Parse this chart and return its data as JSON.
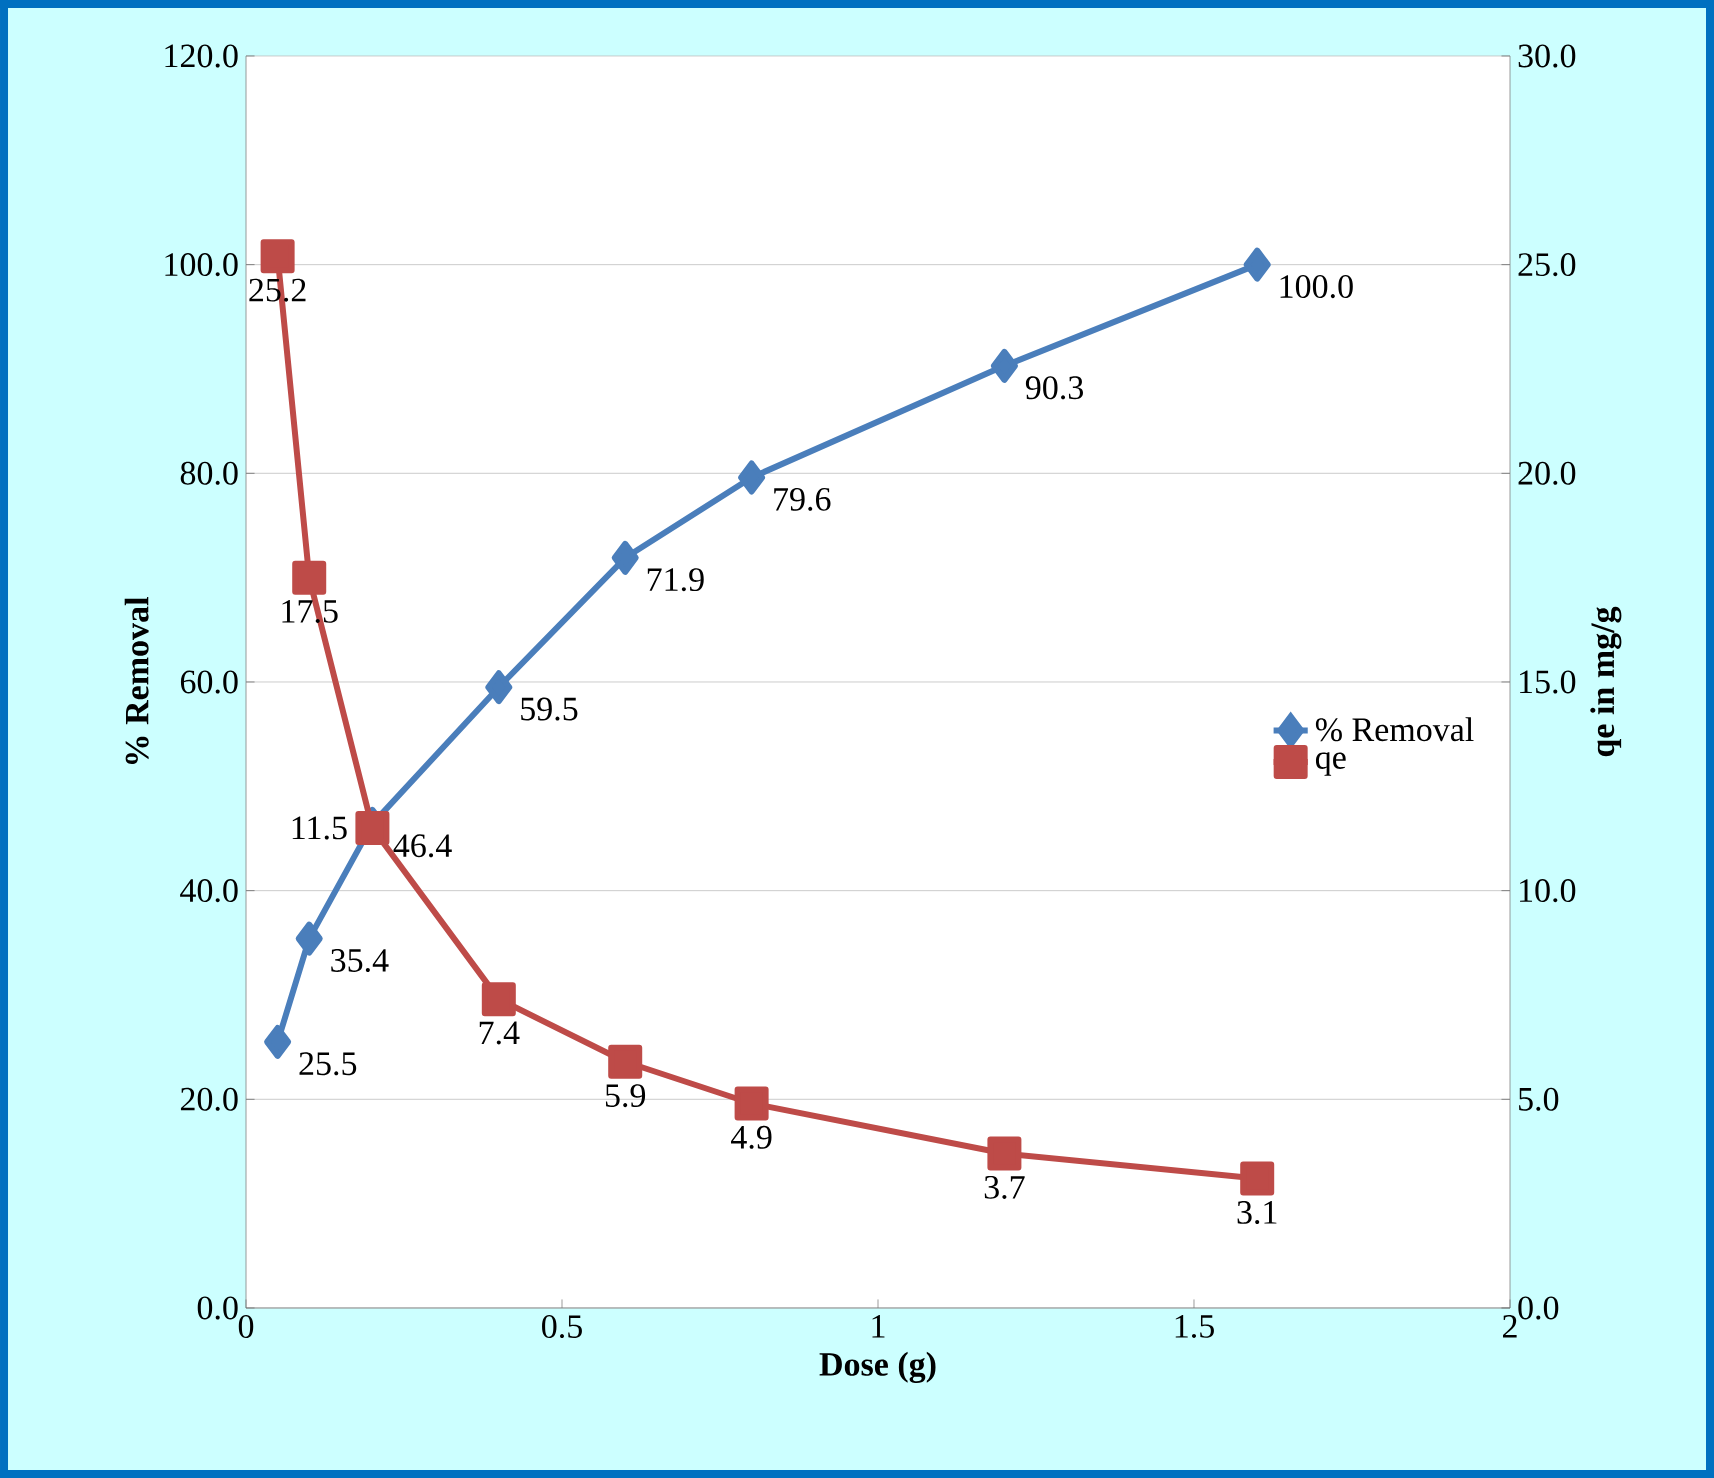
{
  "chart_data": {
    "type": "line",
    "xlabel": "Dose (g)",
    "ylabel": "% Removal",
    "y2label": "qe in mg/g",
    "x": [
      0.05,
      0.1,
      0.2,
      0.4,
      0.6,
      0.8,
      1.2,
      1.6
    ],
    "series": [
      {
        "name": "% Removal",
        "color": "#4a7ebb",
        "marker": "diamond",
        "values": [
          25.5,
          35.4,
          46.4,
          59.5,
          71.9,
          79.6,
          90.3,
          100.0
        ],
        "value_labels": [
          "25.5",
          "35.4",
          "46.4",
          "59.5",
          "71.9",
          "79.6",
          "90.3",
          "100.0"
        ]
      },
      {
        "name": "qe",
        "color": "#be4b48",
        "marker": "square",
        "axis": "y2",
        "values": [
          25.2,
          17.5,
          11.5,
          7.4,
          5.9,
          4.9,
          3.7,
          3.1
        ],
        "value_labels": [
          "25.2",
          "17.5",
          "11.5",
          "7.4",
          "5.9",
          "4.9",
          "3.7",
          "3.1"
        ]
      }
    ],
    "xlim": [
      0,
      2
    ],
    "xticks": [
      0,
      0.5,
      1,
      1.5,
      2
    ],
    "ylim": [
      0,
      120
    ],
    "yticks": [
      {
        "value": 0,
        "label": "0.0"
      },
      {
        "value": 20,
        "label": "20.0"
      },
      {
        "value": 40,
        "label": "40.0"
      },
      {
        "value": 60,
        "label": "60.0"
      },
      {
        "value": 80,
        "label": "80.0"
      },
      {
        "value": 100,
        "label": "100.0"
      },
      {
        "value": 120,
        "label": "120.0"
      }
    ],
    "y2lim": [
      0,
      30
    ],
    "y2ticks": [
      {
        "value": 0,
        "label": "0.0"
      },
      {
        "value": 5,
        "label": "5.0"
      },
      {
        "value": 10,
        "label": "10.0"
      },
      {
        "value": 15,
        "label": "15.0"
      },
      {
        "value": 20,
        "label": "20.0"
      },
      {
        "value": 25,
        "label": "25.0"
      },
      {
        "value": 30,
        "label": "30.0"
      }
    ],
    "grid": "y",
    "legend": "right",
    "line_style": "solid"
  }
}
